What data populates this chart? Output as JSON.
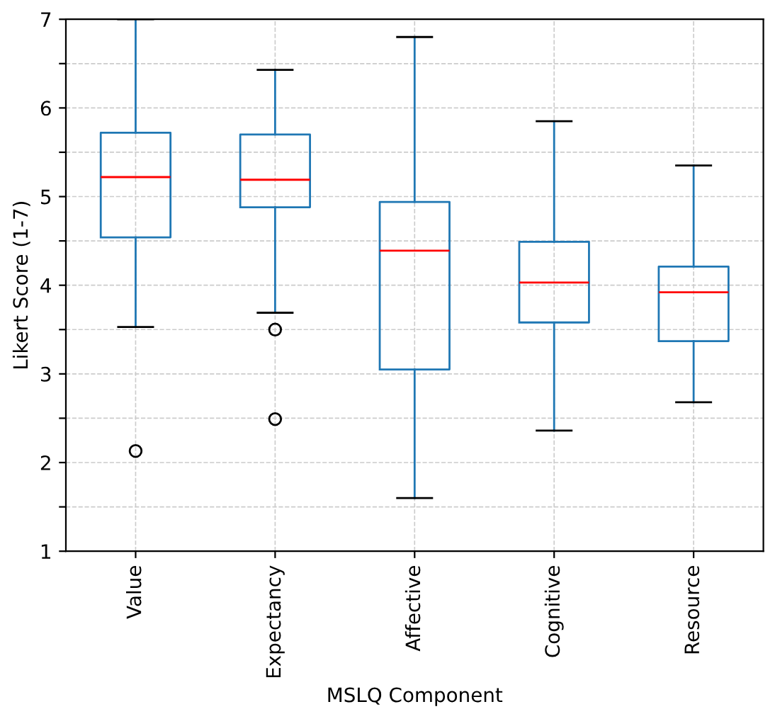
{
  "chart_data": {
    "type": "box",
    "xlabel": "MSLQ Component",
    "ylabel": "Likert Score (1-7)",
    "categories": [
      "Value",
      "Expectancy",
      "Affective",
      "Cognitive",
      "Resource"
    ],
    "series": [
      {
        "color": "#1f77b4",
        "boxes": [
          {
            "low": 3.53,
            "q1": 4.54,
            "median": 5.22,
            "q3": 5.72,
            "high": 7.0,
            "outliers": [
              2.13
            ]
          },
          {
            "low": 3.69,
            "q1": 4.88,
            "median": 5.19,
            "q3": 5.7,
            "high": 6.43,
            "outliers": [
              3.5,
              2.49
            ]
          },
          {
            "low": 1.6,
            "q1": 3.05,
            "median": 4.39,
            "q3": 4.94,
            "high": 6.8
          },
          {
            "low": 2.36,
            "q1": 3.58,
            "median": 4.03,
            "q3": 4.49,
            "high": 5.85
          },
          {
            "low": 2.68,
            "q1": 3.37,
            "median": 3.92,
            "q3": 4.21,
            "high": 5.35
          }
        ]
      }
    ],
    "ylim": [
      1,
      7
    ],
    "yticks": [
      1,
      {
        "value": 1.5,
        "label": null
      },
      2,
      {
        "value": 2.5,
        "label": null
      },
      3,
      {
        "value": 3.5,
        "label": null
      },
      4,
      {
        "value": 4.5,
        "label": null
      },
      5,
      {
        "value": 5.5,
        "label": null
      },
      6,
      {
        "value": 6.5,
        "label": null
      },
      7
    ],
    "grid": true
  }
}
